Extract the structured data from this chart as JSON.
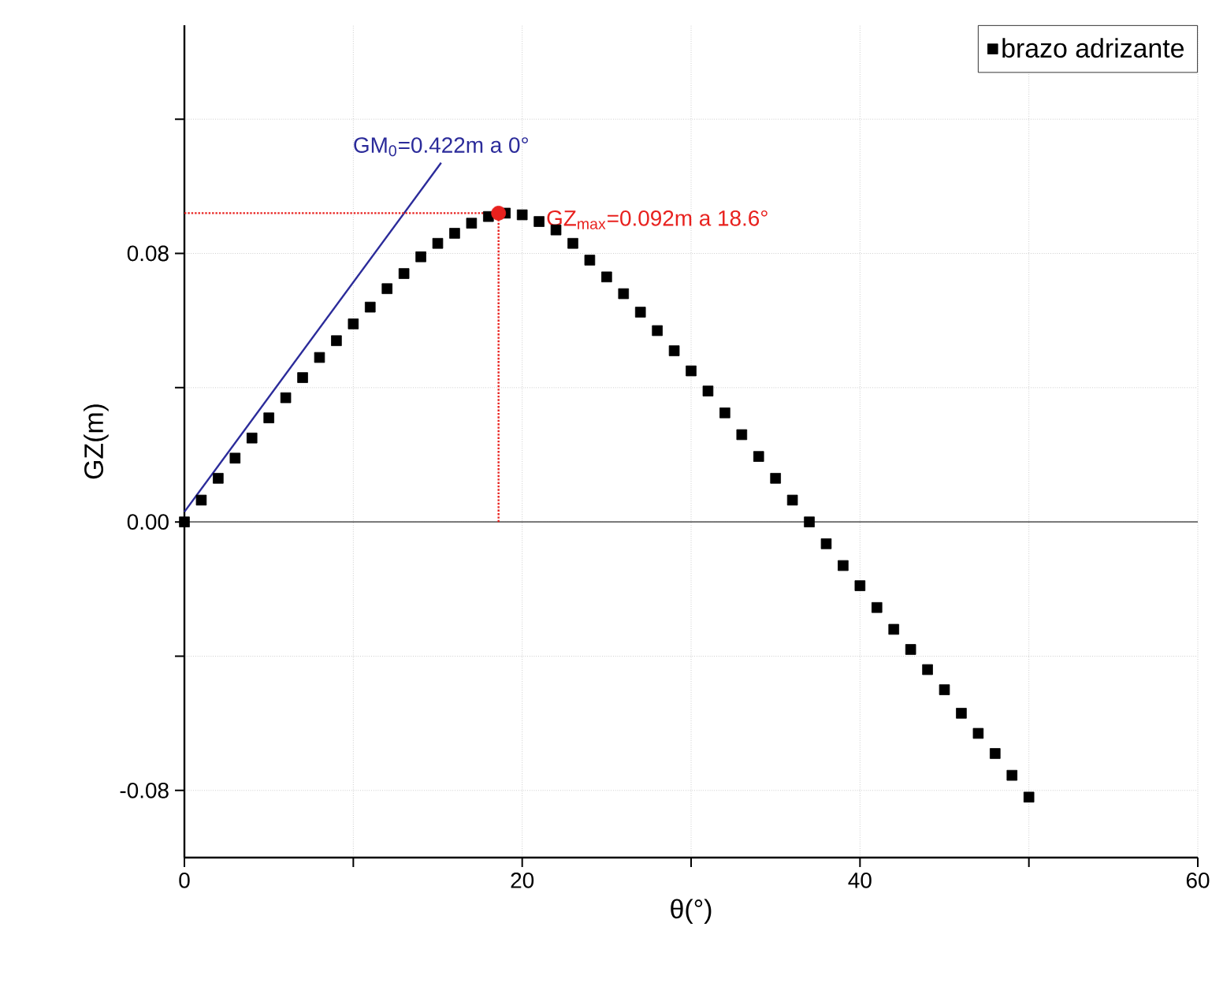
{
  "chart_data": {
    "type": "scatter",
    "xlabel": "θ(°)",
    "ylabel": "GZ(m)",
    "xlim": [
      0,
      60
    ],
    "ylim": [
      -0.1,
      0.148
    ],
    "xticks": [
      0,
      {
        "value": 10,
        "label": null
      },
      20,
      {
        "value": 30,
        "label": null
      },
      40,
      {
        "value": 50,
        "label": null
      },
      60
    ],
    "yticks": [
      -0.08,
      {
        "value": -0.04,
        "label": null
      },
      {
        "value": 0,
        "label": "0.00"
      },
      {
        "value": 0.04,
        "label": null
      },
      0.08,
      {
        "value": 0.12,
        "label": null
      }
    ],
    "grid": true,
    "legend": "top right",
    "ref_lines": [
      {
        "axis": "y",
        "value": 0,
        "color": "#666666"
      }
    ],
    "series": [
      {
        "name": "brazo adrizante",
        "marker": "square",
        "color": "#000000",
        "x": [
          0,
          1,
          2,
          3,
          4,
          5,
          6,
          7,
          8,
          9,
          10,
          11,
          12,
          13,
          14,
          15,
          16,
          17,
          18,
          19,
          20,
          21,
          22,
          23,
          24,
          25,
          26,
          27,
          28,
          29,
          30,
          31,
          32,
          33,
          34,
          35,
          36,
          37,
          38,
          39,
          40,
          41,
          42,
          43,
          44,
          45,
          46,
          47,
          48,
          49,
          50
        ],
        "values": [
          0,
          0.0065,
          0.013,
          0.019,
          0.025,
          0.031,
          0.037,
          0.043,
          0.049,
          0.054,
          0.059,
          0.064,
          0.0695,
          0.074,
          0.079,
          0.083,
          0.086,
          0.089,
          0.091,
          0.092,
          0.0915,
          0.0895,
          0.087,
          0.083,
          0.078,
          0.073,
          0.068,
          0.0625,
          0.057,
          0.051,
          0.045,
          0.039,
          0.0325,
          0.026,
          0.0195,
          0.013,
          0.0065,
          0,
          -0.0065,
          -0.013,
          -0.019,
          -0.0255,
          -0.032,
          -0.038,
          -0.044,
          -0.05,
          -0.057,
          -0.063,
          -0.069,
          -0.0755,
          -0.082
        ]
      },
      {
        "type": "line",
        "color": "#2b2b9a",
        "x": [
          0,
          15.2
        ],
        "values": [
          0.003,
          0.107
        ]
      },
      {
        "type": "scatter",
        "marker": "circle",
        "color": "#e8211e",
        "x": [
          18.6
        ],
        "values": [
          0.092
        ]
      },
      {
        "type": "line",
        "line_style": "dotted",
        "color": "#e8211e",
        "x": [
          0,
          18.6
        ],
        "values": [
          0.092,
          0.092
        ]
      },
      {
        "type": "line",
        "line_style": "dotted",
        "color": "#e8211e",
        "x": [
          18.6,
          18.6
        ],
        "values": [
          0,
          0.092
        ]
      }
    ],
    "annotations": [
      "GM$_{0}$=0.422m a 0°",
      {
        "text": "GZ$_{max}$=0.092m a 18.6°",
        "x": 21.4,
        "y": 0.09
      }
    ]
  }
}
